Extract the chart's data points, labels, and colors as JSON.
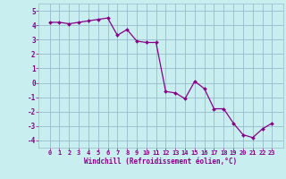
{
  "x": [
    0,
    1,
    2,
    3,
    4,
    5,
    6,
    7,
    8,
    9,
    10,
    11,
    12,
    13,
    14,
    15,
    16,
    17,
    18,
    19,
    20,
    21,
    22,
    23
  ],
  "y": [
    4.2,
    4.2,
    4.1,
    4.2,
    4.3,
    4.4,
    4.5,
    3.3,
    3.7,
    2.9,
    2.8,
    2.8,
    -0.6,
    -0.7,
    -1.1,
    0.1,
    -0.4,
    -1.8,
    -1.8,
    -2.8,
    -3.6,
    -3.8,
    -3.2,
    -2.8
  ],
  "line_color": "#880088",
  "marker_color": "#880088",
  "bg_color": "#c8eef0",
  "grid_color": "#99bbcc",
  "xlabel": "Windchill (Refroidissement éolien,°C)",
  "ylim": [
    -4.5,
    5.5
  ],
  "yticks": [
    -4,
    -3,
    -2,
    -1,
    0,
    1,
    2,
    3,
    4,
    5
  ],
  "xticks": [
    0,
    1,
    2,
    3,
    4,
    5,
    6,
    7,
    8,
    9,
    10,
    11,
    12,
    13,
    14,
    15,
    16,
    17,
    18,
    19,
    20,
    21,
    22,
    23
  ],
  "title_color": "#880088",
  "font_family": "monospace"
}
